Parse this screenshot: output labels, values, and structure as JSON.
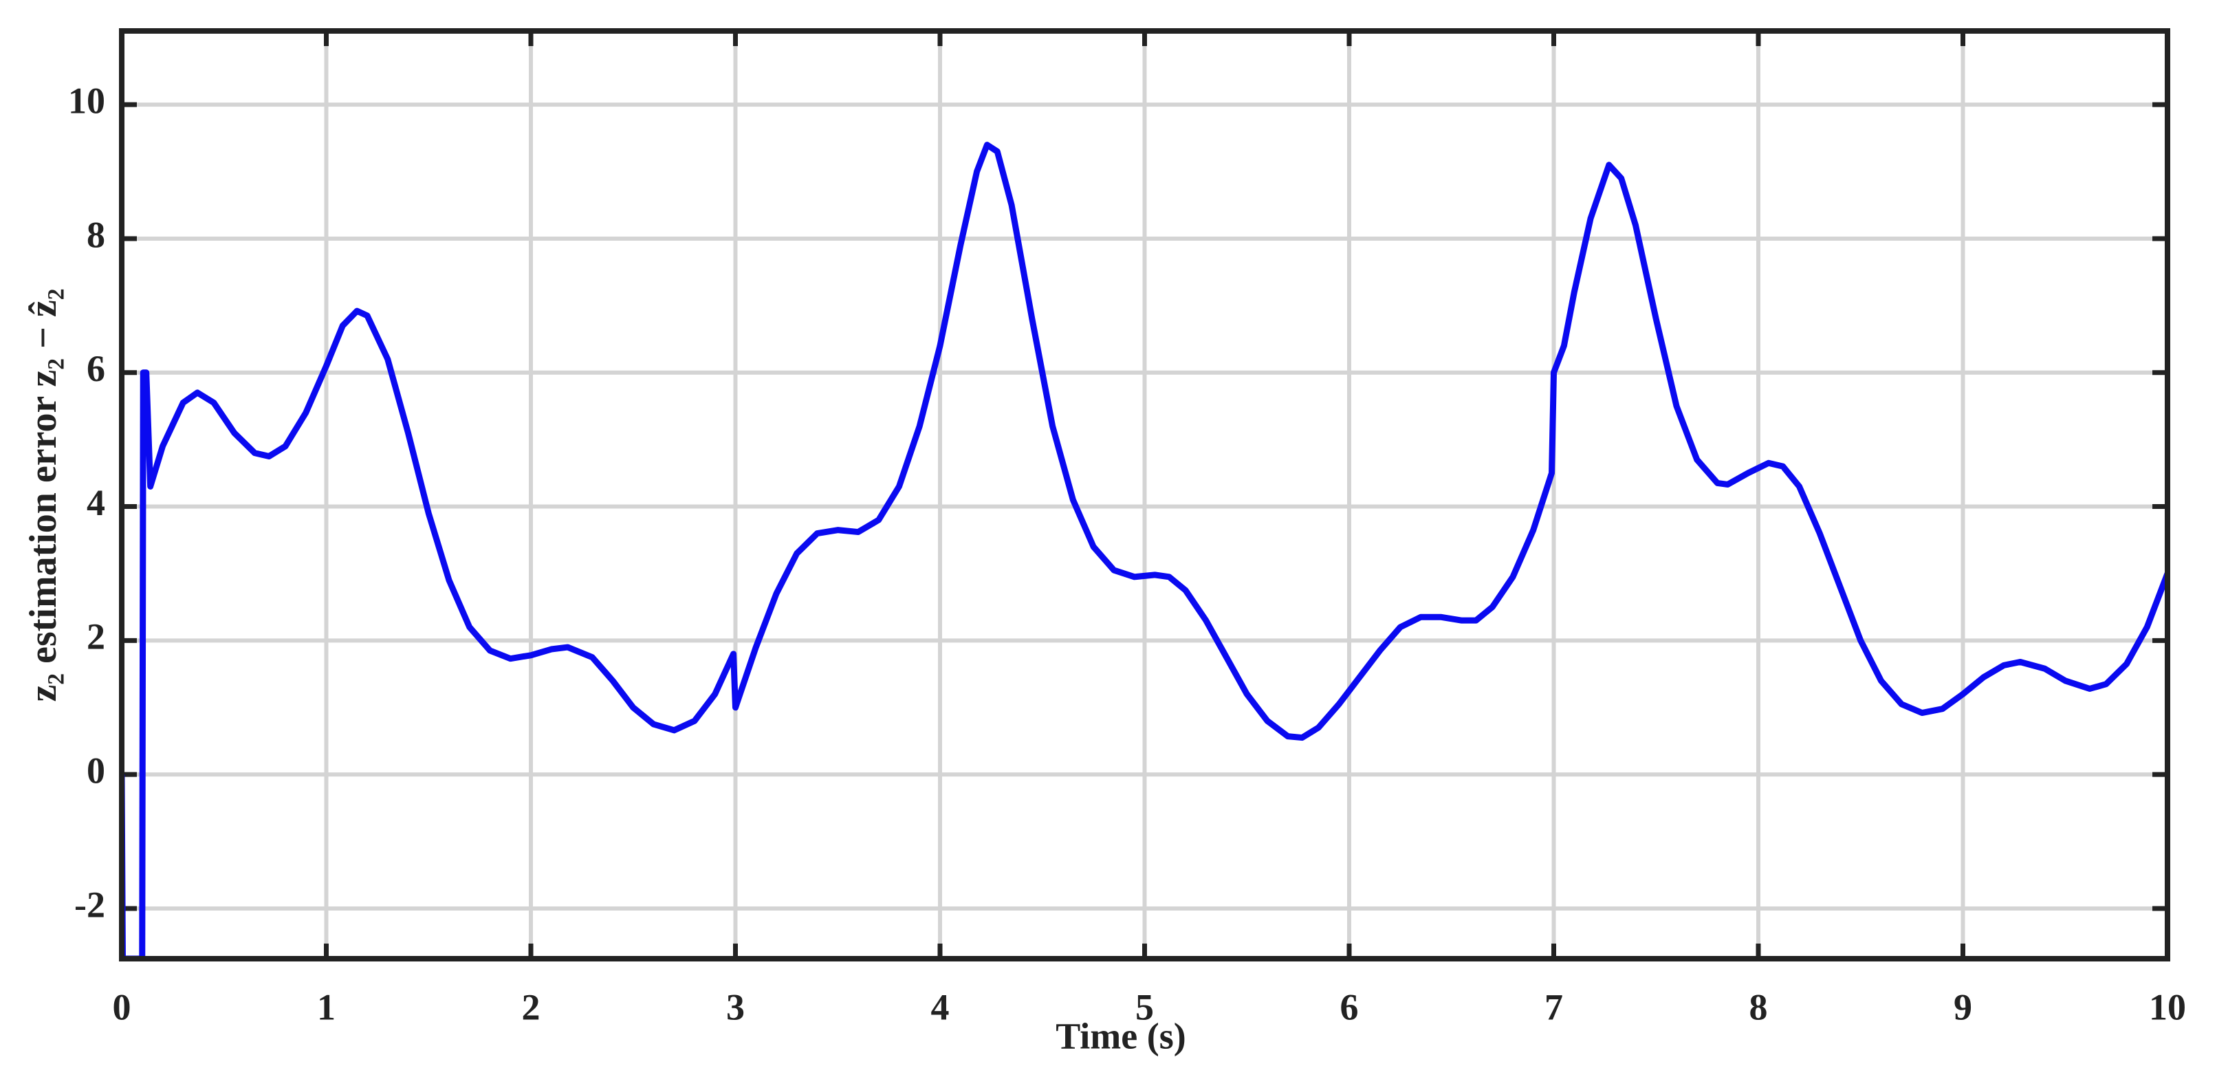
{
  "chart_data": {
    "type": "line",
    "x_label": "Time (s)",
    "y_label": "z₂ estimation error z₂ − ẑ₂",
    "xlim": [
      0,
      10
    ],
    "ylim": [
      -2.75,
      11.1
    ],
    "xticks": [
      0,
      1,
      2,
      3,
      4,
      5,
      6,
      7,
      8,
      9,
      10
    ],
    "yticks": [
      -2,
      0,
      2,
      4,
      6,
      8,
      10
    ],
    "grid": true,
    "series": [
      {
        "color": "#0a0af0",
        "x": [
          0,
          0.005,
          0.1,
          0.105,
          0.12,
          0.14,
          0.2,
          0.3,
          0.37,
          0.45,
          0.55,
          0.65,
          0.72,
          0.8,
          0.9,
          1.0,
          1.08,
          1.15,
          1.2,
          1.3,
          1.4,
          1.5,
          1.6,
          1.7,
          1.8,
          1.9,
          2.0,
          2.1,
          2.18,
          2.3,
          2.4,
          2.5,
          2.6,
          2.7,
          2.8,
          2.9,
          2.99,
          3.0,
          3.1,
          3.2,
          3.3,
          3.4,
          3.5,
          3.6,
          3.7,
          3.8,
          3.9,
          4.0,
          4.1,
          4.18,
          4.23,
          4.28,
          4.35,
          4.45,
          4.55,
          4.65,
          4.75,
          4.85,
          4.95,
          5.05,
          5.12,
          5.2,
          5.3,
          5.4,
          5.5,
          5.6,
          5.7,
          5.77,
          5.85,
          5.95,
          6.05,
          6.15,
          6.25,
          6.35,
          6.45,
          6.55,
          6.62,
          6.7,
          6.8,
          6.9,
          6.99,
          7.0,
          7.05,
          7.1,
          7.18,
          7.27,
          7.33,
          7.4,
          7.5,
          7.6,
          7.7,
          7.8,
          7.85,
          7.95,
          8.05,
          8.12,
          8.2,
          8.3,
          8.4,
          8.5,
          8.6,
          8.7,
          8.8,
          8.9,
          9.0,
          9.1,
          9.2,
          9.28,
          9.4,
          9.5,
          9.62,
          9.7,
          9.8,
          9.9,
          10.0
        ],
        "values": [
          0,
          -2.75,
          -2.75,
          6,
          6,
          4.3,
          4.9,
          5.55,
          5.7,
          5.55,
          5.1,
          4.8,
          4.75,
          4.9,
          5.4,
          6.1,
          6.7,
          6.92,
          6.85,
          6.2,
          5.1,
          3.9,
          2.9,
          2.2,
          1.85,
          1.73,
          1.78,
          1.87,
          1.9,
          1.75,
          1.4,
          1.0,
          0.75,
          0.66,
          0.8,
          1.2,
          1.8,
          1.0,
          1.9,
          2.7,
          3.3,
          3.6,
          3.65,
          3.62,
          3.8,
          4.3,
          5.2,
          6.4,
          7.9,
          9.0,
          9.4,
          9.3,
          8.5,
          6.8,
          5.2,
          4.1,
          3.4,
          3.05,
          2.95,
          2.98,
          2.95,
          2.75,
          2.3,
          1.75,
          1.2,
          0.8,
          0.57,
          0.55,
          0.7,
          1.05,
          1.45,
          1.85,
          2.2,
          2.35,
          2.35,
          2.3,
          2.3,
          2.5,
          2.95,
          3.65,
          4.5,
          6.0,
          6.4,
          7.2,
          8.3,
          9.1,
          8.9,
          8.2,
          6.8,
          5.5,
          4.7,
          4.35,
          4.33,
          4.5,
          4.65,
          4.6,
          4.3,
          3.6,
          2.8,
          2.0,
          1.4,
          1.05,
          0.92,
          0.98,
          1.2,
          1.45,
          1.63,
          1.68,
          1.58,
          1.4,
          1.28,
          1.35,
          1.65,
          2.2,
          3.0
        ]
      }
    ]
  }
}
